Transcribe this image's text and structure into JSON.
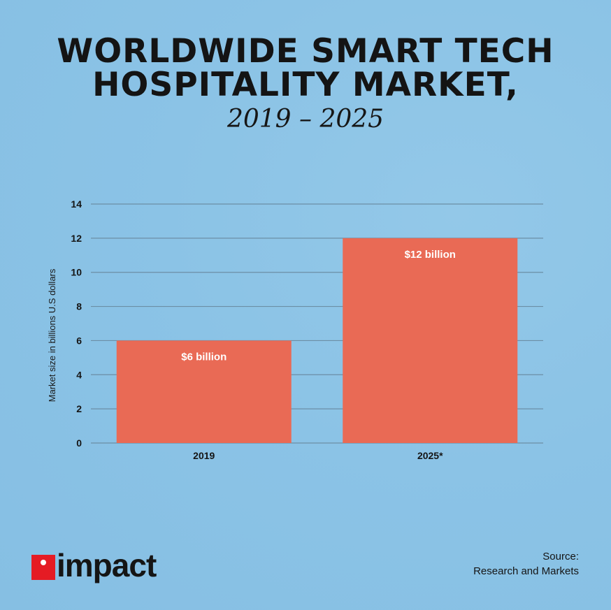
{
  "header": {
    "title": "WORLDWIDE SMART TECH HOSPITALITY MARKET,",
    "subtitle": "2019 – 2025"
  },
  "chart_data": {
    "type": "bar",
    "categories": [
      "2019",
      "2025*"
    ],
    "values": [
      6,
      12
    ],
    "data_labels": [
      "$6 billion",
      "$12 billion"
    ],
    "ylabel": "Market size in billions U.S dollars",
    "ylim": [
      0,
      14
    ],
    "yticks": [
      0,
      2,
      4,
      6,
      8,
      10,
      12,
      14
    ],
    "grid": true,
    "bar_color": "#e96a55"
  },
  "logo": {
    "text": "impact",
    "brand_color": "#e51b24"
  },
  "source": {
    "label": "Source:",
    "text": "Research and Markets"
  }
}
